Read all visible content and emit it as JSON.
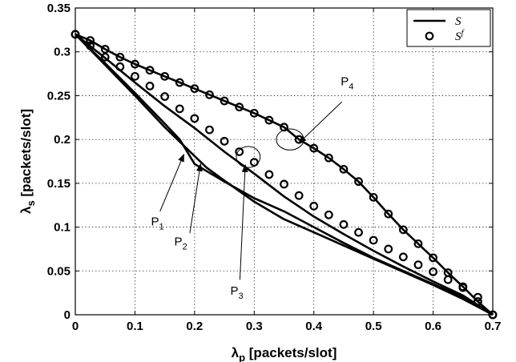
{
  "chart_data": {
    "type": "line",
    "xlim": [
      0,
      0.7
    ],
    "ylim": [
      0,
      0.35
    ],
    "xticks": [
      "0",
      "0.1",
      "0.2",
      "0.3",
      "0.4",
      "0.5",
      "0.6",
      "0.7"
    ],
    "yticks": [
      "0",
      "0.05",
      "0.1",
      "0.15",
      "0.2",
      "0.25",
      "0.3",
      "0.35"
    ],
    "xlabel": {
      "main": "λ",
      "sub": "p",
      "rest": " [packets/slot]"
    },
    "ylabel": {
      "main": "λ",
      "sub": "s",
      "rest": " [packets/slot]"
    },
    "grid": true,
    "legend_position": "top-right",
    "legend": [
      {
        "label": "S",
        "sup": "",
        "style": "solid-line"
      },
      {
        "label": "S",
        "sup": "f",
        "style": "circle-marker"
      }
    ],
    "series": [
      {
        "style": "solid-line",
        "x": [
          0,
          0.025,
          0.05,
          0.075,
          0.1,
          0.125,
          0.15,
          0.175,
          0.2,
          0.225,
          0.25,
          0.275,
          0.3,
          0.325,
          0.35,
          0.375,
          0.4,
          0.425,
          0.45,
          0.475,
          0.5,
          0.525,
          0.55,
          0.575,
          0.6,
          0.625,
          0.65,
          0.675,
          0.7
        ],
        "y": [
          0.32,
          0.313,
          0.303,
          0.294,
          0.286,
          0.279,
          0.272,
          0.265,
          0.258,
          0.251,
          0.244,
          0.237,
          0.23,
          0.222,
          0.214,
          0.2,
          0.19,
          0.179,
          0.166,
          0.152,
          0.134,
          0.115,
          0.097,
          0.081,
          0.065,
          0.048,
          0.032,
          0.015,
          0
        ]
      },
      {
        "style": "solid-line",
        "x": [
          0,
          0.05,
          0.1,
          0.15,
          0.2,
          0.25,
          0.3,
          0.35,
          0.4,
          0.45,
          0.5,
          0.55,
          0.6,
          0.65,
          0.7
        ],
        "y": [
          0.32,
          0.293,
          0.265,
          0.238,
          0.213,
          0.186,
          0.161,
          0.135,
          0.112,
          0.092,
          0.073,
          0.055,
          0.038,
          0.022,
          0
        ]
      },
      {
        "style": "solid-line",
        "x": [
          0,
          0.05,
          0.1,
          0.15,
          0.175,
          0.2,
          0.25,
          0.3,
          0.35,
          0.4,
          0.45,
          0.5,
          0.55,
          0.6,
          0.65,
          0.7
        ],
        "y": [
          0.32,
          0.287,
          0.253,
          0.218,
          0.2,
          0.172,
          0.152,
          0.133,
          0.118,
          0.1,
          0.082,
          0.065,
          0.05,
          0.035,
          0.02,
          0
        ]
      },
      {
        "style": "solid-line",
        "x": [
          0,
          0.05,
          0.1,
          0.15,
          0.2,
          0.22,
          0.25,
          0.3,
          0.35,
          0.4,
          0.45,
          0.5,
          0.55,
          0.6,
          0.65,
          0.7
        ],
        "y": [
          0.32,
          0.285,
          0.25,
          0.214,
          0.181,
          0.168,
          0.153,
          0.129,
          0.109,
          0.094,
          0.079,
          0.064,
          0.049,
          0.034,
          0.018,
          0
        ]
      },
      {
        "style": "circle-marker",
        "x": [
          0,
          0.025,
          0.05,
          0.075,
          0.1,
          0.125,
          0.15,
          0.175,
          0.2,
          0.225,
          0.25,
          0.275,
          0.3,
          0.325,
          0.35,
          0.375,
          0.4,
          0.425,
          0.45,
          0.475,
          0.5,
          0.525,
          0.55,
          0.575,
          0.6,
          0.625,
          0.65,
          0.675,
          0.7
        ],
        "y": [
          0.32,
          0.313,
          0.303,
          0.294,
          0.286,
          0.279,
          0.272,
          0.265,
          0.258,
          0.251,
          0.244,
          0.237,
          0.23,
          0.222,
          0.214,
          0.2,
          0.19,
          0.179,
          0.166,
          0.152,
          0.134,
          0.115,
          0.097,
          0.081,
          0.065,
          0.048,
          0.032,
          0.015,
          0
        ]
      },
      {
        "style": "circle-marker",
        "x": [
          0,
          0.025,
          0.05,
          0.075,
          0.1,
          0.125,
          0.15,
          0.175,
          0.2,
          0.225,
          0.25,
          0.275,
          0.3,
          0.325,
          0.35,
          0.375,
          0.4,
          0.425,
          0.45,
          0.475,
          0.5,
          0.525,
          0.55,
          0.575,
          0.6,
          0.625,
          0.65,
          0.675,
          0.7
        ],
        "y": [
          0.32,
          0.307,
          0.294,
          0.283,
          0.272,
          0.261,
          0.249,
          0.235,
          0.224,
          0.211,
          0.198,
          0.186,
          0.174,
          0.16,
          0.149,
          0.136,
          0.124,
          0.114,
          0.103,
          0.094,
          0.085,
          0.075,
          0.066,
          0.057,
          0.049,
          0.04,
          0.031,
          0.02,
          0
        ]
      }
    ],
    "annotations": [
      {
        "label": "P",
        "sub": "4",
        "text_at": [
          0.445,
          0.262
        ],
        "arrow_from": [
          0.447,
          0.243
        ],
        "arrow_to": [
          0.375,
          0.196
        ],
        "ellipse": {
          "center": [
            0.36,
            0.2
          ],
          "rx": 0.023,
          "ry": 0.012
        }
      },
      {
        "label": "P",
        "sub": "3",
        "text_at": [
          0.26,
          0.023
        ],
        "arrow_from": [
          0.276,
          0.04
        ],
        "arrow_to": [
          0.285,
          0.171
        ],
        "ellipse": {
          "center": [
            0.29,
            0.18
          ],
          "rx": 0.02,
          "ry": 0.012
        }
      },
      {
        "label": "P",
        "sub": "1",
        "text_at": [
          0.127,
          0.102
        ],
        "arrow_from": [
          0.142,
          0.118
        ],
        "arrow_to": [
          0.182,
          0.183
        ]
      },
      {
        "label": "P",
        "sub": "2",
        "text_at": [
          0.166,
          0.079
        ],
        "arrow_from": [
          0.192,
          0.093
        ],
        "arrow_to": [
          0.21,
          0.172
        ]
      }
    ]
  }
}
